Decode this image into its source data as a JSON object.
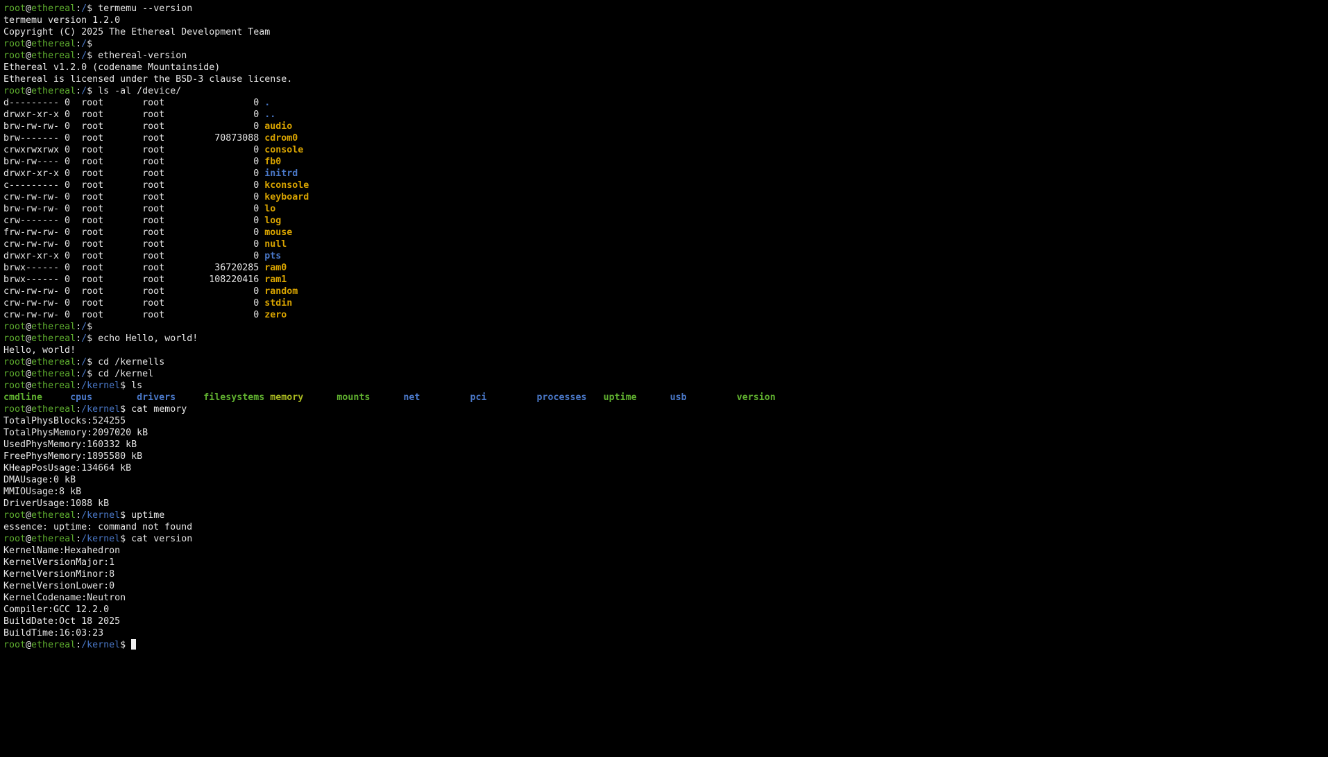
{
  "terminal": {
    "lines": [
      [
        [
          "root",
          "#5faf2f"
        ],
        [
          "@"
        ],
        [
          "ethereal",
          "#5faf2f"
        ],
        [
          ":"
        ],
        [
          "/",
          "#4a78c8"
        ],
        [
          "$ termemu --version"
        ]
      ],
      [
        [
          "termemu version 1.2.0"
        ]
      ],
      [
        [
          "Copyright (C) 2025 The Ethereal Development Team"
        ]
      ],
      [
        [
          "root",
          "#5faf2f"
        ],
        [
          "@"
        ],
        [
          "ethereal",
          "#5faf2f"
        ],
        [
          ":"
        ],
        [
          "/",
          "#4a78c8"
        ],
        [
          "$"
        ]
      ],
      [
        [
          "root",
          "#5faf2f"
        ],
        [
          "@"
        ],
        [
          "ethereal",
          "#5faf2f"
        ],
        [
          ":"
        ],
        [
          "/",
          "#4a78c8"
        ],
        [
          "$ ethereal-version"
        ]
      ],
      [
        [
          "Ethereal v1.2.0 (codename Mountainside)"
        ]
      ],
      [
        [
          "Ethereal is licensed under the BSD-3 clause license."
        ]
      ],
      [
        [
          "root",
          "#5faf2f"
        ],
        [
          "@"
        ],
        [
          "ethereal",
          "#5faf2f"
        ],
        [
          ":"
        ],
        [
          "/",
          "#4a78c8"
        ],
        [
          "$ ls -al /device/"
        ]
      ],
      [
        [
          "d--------- 0  root       root                0 "
        ],
        [
          ".",
          "#4a78c8",
          true
        ]
      ],
      [
        [
          "drwxr-xr-x 0  root       root                0 "
        ],
        [
          "..",
          "#4a78c8",
          true
        ]
      ],
      [
        [
          "brw-rw-rw- 0  root       root                0 "
        ],
        [
          "audio",
          "#d9a400",
          true
        ]
      ],
      [
        [
          "brw------- 0  root       root         70873088 "
        ],
        [
          "cdrom0",
          "#d9a400",
          true
        ]
      ],
      [
        [
          "crwxrwxrwx 0  root       root                0 "
        ],
        [
          "console",
          "#d9a400",
          true
        ]
      ],
      [
        [
          "brw-rw---- 0  root       root                0 "
        ],
        [
          "fb0",
          "#d9a400",
          true
        ]
      ],
      [
        [
          "drwxr-xr-x 0  root       root                0 "
        ],
        [
          "initrd",
          "#4a78c8",
          true
        ]
      ],
      [
        [
          "c--------- 0  root       root                0 "
        ],
        [
          "kconsole",
          "#d9a400",
          true
        ]
      ],
      [
        [
          "crw-rw-rw- 0  root       root                0 "
        ],
        [
          "keyboard",
          "#d9a400",
          true
        ]
      ],
      [
        [
          "brw-rw-rw- 0  root       root                0 "
        ],
        [
          "lo",
          "#d9a400",
          true
        ]
      ],
      [
        [
          "crw------- 0  root       root                0 "
        ],
        [
          "log",
          "#d9a400",
          true
        ]
      ],
      [
        [
          "frw-rw-rw- 0  root       root                0 "
        ],
        [
          "mouse",
          "#d9a400",
          true
        ]
      ],
      [
        [
          "crw-rw-rw- 0  root       root                0 "
        ],
        [
          "null",
          "#d9a400",
          true
        ]
      ],
      [
        [
          "drwxr-xr-x 0  root       root                0 "
        ],
        [
          "pts",
          "#4a78c8",
          true
        ]
      ],
      [
        [
          "brwx------ 0  root       root         36720285 "
        ],
        [
          "ram0",
          "#d9a400",
          true
        ]
      ],
      [
        [
          "brwx------ 0  root       root        108220416 "
        ],
        [
          "ram1",
          "#d9a400",
          true
        ]
      ],
      [
        [
          "crw-rw-rw- 0  root       root                0 "
        ],
        [
          "random",
          "#d9a400",
          true
        ]
      ],
      [
        [
          "crw-rw-rw- 0  root       root                0 "
        ],
        [
          "stdin",
          "#d9a400",
          true
        ]
      ],
      [
        [
          "crw-rw-rw- 0  root       root                0 "
        ],
        [
          "zero",
          "#d9a400",
          true
        ]
      ],
      [
        [
          "root",
          "#5faf2f"
        ],
        [
          "@"
        ],
        [
          "ethereal",
          "#5faf2f"
        ],
        [
          ":"
        ],
        [
          "/",
          "#4a78c8"
        ],
        [
          "$"
        ]
      ],
      [
        [
          "root",
          "#5faf2f"
        ],
        [
          "@"
        ],
        [
          "ethereal",
          "#5faf2f"
        ],
        [
          ":"
        ],
        [
          "/",
          "#4a78c8"
        ],
        [
          "$ echo Hello, world!"
        ]
      ],
      [
        [
          "Hello, world!"
        ]
      ],
      [
        [
          "root",
          "#5faf2f"
        ],
        [
          "@"
        ],
        [
          "ethereal",
          "#5faf2f"
        ],
        [
          ":"
        ],
        [
          "/",
          "#4a78c8"
        ],
        [
          "$ cd /kernells"
        ]
      ],
      [
        [
          "root",
          "#5faf2f"
        ],
        [
          "@"
        ],
        [
          "ethereal",
          "#5faf2f"
        ],
        [
          ":"
        ],
        [
          "/",
          "#4a78c8"
        ],
        [
          "$ cd /kernel"
        ]
      ],
      [
        [
          "root",
          "#5faf2f"
        ],
        [
          "@"
        ],
        [
          "ethereal",
          "#5faf2f"
        ],
        [
          ":"
        ],
        [
          "/kernel",
          "#4a78c8"
        ],
        [
          "$ ls"
        ]
      ],
      {
        "columns": [
          [
            "cmdline",
            "#5faf2f",
            true
          ],
          [
            "cpus",
            "#4a78c8",
            true
          ],
          [
            "drivers",
            "#4a78c8",
            true
          ],
          [
            "filesystems",
            "#5faf2f",
            true
          ],
          [
            "memory",
            "#a8b820",
            true
          ],
          [
            "mounts",
            "#5faf2f",
            true
          ],
          [
            "net",
            "#4a78c8",
            true
          ],
          [
            "pci",
            "#4a78c8",
            true
          ],
          [
            "processes",
            "#4a78c8",
            true
          ],
          [
            "uptime",
            "#5faf2f",
            true
          ],
          [
            "usb",
            "#4a78c8",
            true
          ],
          [
            "version",
            "#5faf2f",
            true
          ]
        ]
      },
      [
        [
          "root",
          "#5faf2f"
        ],
        [
          "@"
        ],
        [
          "ethereal",
          "#5faf2f"
        ],
        [
          ":"
        ],
        [
          "/kernel",
          "#4a78c8"
        ],
        [
          "$ cat memory"
        ]
      ],
      [
        [
          "TotalPhysBlocks:524255"
        ]
      ],
      [
        [
          "TotalPhysMemory:2097020 kB"
        ]
      ],
      [
        [
          "UsedPhysMemory:160332 kB"
        ]
      ],
      [
        [
          "FreePhysMemory:1895580 kB"
        ]
      ],
      [
        [
          "KHeapPosUsage:134664 kB"
        ]
      ],
      [
        [
          "DMAUsage:0 kB"
        ]
      ],
      [
        [
          "MMIOUsage:8 kB"
        ]
      ],
      [
        [
          "DriverUsage:1088 kB"
        ]
      ],
      [
        [
          "root",
          "#5faf2f"
        ],
        [
          "@"
        ],
        [
          "ethereal",
          "#5faf2f"
        ],
        [
          ":"
        ],
        [
          "/kernel",
          "#4a78c8"
        ],
        [
          "$ uptime"
        ]
      ],
      [
        [
          "essence: uptime: command not found"
        ]
      ],
      [
        [
          "root",
          "#5faf2f"
        ],
        [
          "@"
        ],
        [
          "ethereal",
          "#5faf2f"
        ],
        [
          ":"
        ],
        [
          "/kernel",
          "#4a78c8"
        ],
        [
          "$ cat version"
        ]
      ],
      [
        [
          "KernelName:Hexahedron"
        ]
      ],
      [
        [
          "KernelVersionMajor:1"
        ]
      ],
      [
        [
          "KernelVersionMinor:8"
        ]
      ],
      [
        [
          "KernelVersionLower:0"
        ]
      ],
      [
        [
          "KernelCodename:Neutron"
        ]
      ],
      [
        [
          "Compiler:GCC 12.2.0"
        ]
      ],
      [
        [
          "BuildDate:Oct 18 2025"
        ]
      ],
      [
        [
          "BuildTime:16:03:23"
        ]
      ],
      [
        [
          "root",
          "#5faf2f"
        ],
        [
          "@"
        ],
        [
          "ethereal",
          "#5faf2f"
        ],
        [
          ":"
        ],
        [
          "/kernel",
          "#4a78c8"
        ],
        [
          "$ "
        ]
      ]
    ]
  }
}
